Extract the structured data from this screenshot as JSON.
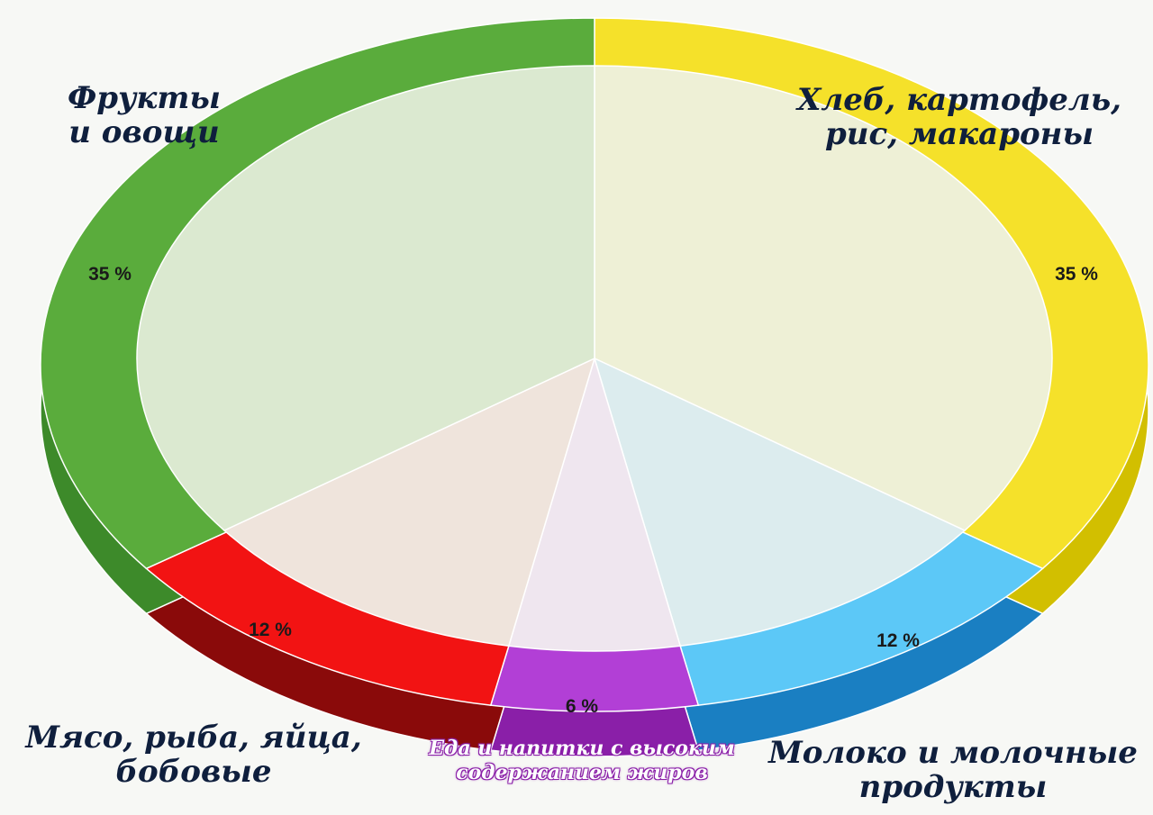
{
  "chart_data": {
    "type": "pie",
    "title": "",
    "categories": [
      "Хлеб, картофель, рис, макароны",
      "Молоко и молочные продукты",
      "Еда и напитки с высоким содержанием жиров",
      "Мясо, рыба, яйца, бобовые",
      "Фрукты и овощи"
    ],
    "values": [
      35,
      12,
      6,
      12,
      35
    ],
    "value_labels": [
      "35 %",
      "12 %",
      "6 %",
      "12 %",
      "35 %"
    ],
    "colors": [
      "#f5e12a",
      "#5cc8f7",
      "#b23fd6",
      "#f21313",
      "#5aac3c"
    ],
    "side_colors": [
      "#d2bf00",
      "#1a7fc2",
      "#8a1fa8",
      "#8a0a0a",
      "#3d8a2a"
    ],
    "inner_colors": [
      "#eef0d6",
      "#dcecee",
      "#efe6ef",
      "#efe4dc",
      "#dbe9d0"
    ],
    "legend": "none"
  },
  "labels": {
    "fruits": [
      "Фрукты",
      "и овощи"
    ],
    "bread": [
      "Хлеб, картофель,",
      "рис, макароны"
    ],
    "meat": [
      "Мясо, рыба, яйца,",
      "бобовые"
    ],
    "fats": [
      "Еда и напитки с высоким",
      "содержанием жиров"
    ],
    "dairy": [
      "Молоко и молочные",
      "продукты"
    ]
  }
}
